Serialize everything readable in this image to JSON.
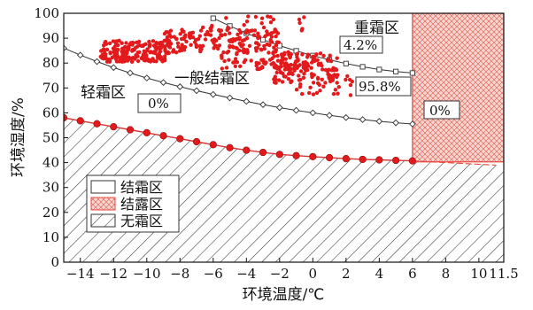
{
  "chart_data": {
    "type": "scatter",
    "xlabel": "环境温度/℃",
    "ylabel": "环境湿度/%",
    "xlim": [
      -15,
      11.5
    ],
    "ylim": [
      0,
      100
    ],
    "x_ticks": [
      -14,
      -12,
      -10,
      -8,
      -6,
      -4,
      -2,
      0,
      2,
      4,
      6,
      8,
      10,
      11.5
    ],
    "x_tick_labels": [
      "−14",
      "−12",
      "−10",
      "−8",
      "−6",
      "−4",
      "−2",
      "0",
      "2",
      "4",
      "6",
      "8",
      "10",
      "11.5"
    ],
    "y_ticks": [
      0,
      10,
      20,
      30,
      40,
      50,
      60,
      70,
      80,
      90,
      100
    ],
    "y_tick_labels": [
      "0",
      "10",
      "20",
      "30",
      "40",
      "50",
      "60",
      "70",
      "80",
      "90",
      "100"
    ],
    "frost_boundary": {
      "x": [
        -15,
        -14,
        -13,
        -12,
        -11,
        -10,
        -9,
        -8,
        -7,
        -6,
        -5,
        -4,
        -3,
        -2,
        -1,
        0,
        1,
        2,
        3,
        4,
        5,
        6
      ],
      "y": [
        58.0,
        56.8,
        55.6,
        54.4,
        53.2,
        52.0,
        50.8,
        49.6,
        48.4,
        47.2,
        46.0,
        45.0,
        44.1,
        43.3,
        42.8,
        42.4,
        42.0,
        41.6,
        41.3,
        41.1,
        40.9,
        40.7
      ]
    },
    "frost_boundary_extension": {
      "x": [
        6,
        11
      ],
      "y": [
        40.7,
        39.0
      ]
    },
    "light_frost_boundary": {
      "x": [
        -15,
        -14,
        -13,
        -12,
        -11,
        -10,
        -9,
        -8,
        -7,
        -6,
        -5,
        -4,
        -3,
        -2,
        -1,
        0,
        1,
        2,
        3,
        4,
        5,
        6
      ],
      "y": [
        86.0,
        83.2,
        80.6,
        78.2,
        76.0,
        74.0,
        72.2,
        70.5,
        68.9,
        67.4,
        66.0,
        64.6,
        63.3,
        62.1,
        61.0,
        60.0,
        59.0,
        58.1,
        57.3,
        56.6,
        56.0,
        55.5
      ]
    },
    "heavy_frost_boundary": {
      "x": [
        -6,
        -5,
        -4,
        -3,
        -2,
        -1,
        0,
        1,
        2,
        3,
        4,
        5,
        6
      ],
      "y": [
        98.0,
        94.9,
        92.0,
        89.4,
        87.0,
        84.9,
        83.0,
        81.3,
        79.8,
        78.5,
        77.4,
        76.6,
        76.0
      ]
    },
    "dew_region_x": [
      6,
      11.5
    ],
    "dew_region_y": [
      40.3,
      100
    ],
    "observations": {
      "clusters": [
        {
          "x": [
            -12.8,
            -8.5
          ],
          "y": [
            80.5,
            89.0
          ],
          "n": 190
        },
        {
          "x": [
            -9.0,
            -2.0
          ],
          "y": [
            84.0,
            93.5
          ],
          "n": 170
        },
        {
          "x": [
            -2.5,
            1.5
          ],
          "y": [
            72.0,
            84.0
          ],
          "n": 140
        },
        {
          "x": [
            -5.5,
            -1.0
          ],
          "y": [
            77.5,
            85.0
          ],
          "n": 60
        },
        {
          "x": [
            -1.0,
            2.5
          ],
          "y": [
            67.0,
            75.0
          ],
          "n": 30
        },
        {
          "x": [
            -7.0,
            -0.5
          ],
          "y": [
            93.0,
            99.0
          ],
          "n": 25
        }
      ]
    },
    "region_labels": {
      "heavy": "重霜区",
      "general": "一般结霜区",
      "light": "轻霜区"
    },
    "percent_labels": {
      "heavy": "4.2%",
      "general": "95.8%",
      "light": "0%",
      "dew": "0%"
    },
    "legend": {
      "items": [
        {
          "label": "结霜区",
          "style": "blank"
        },
        {
          "label": "结露区",
          "style": "red-crosshatch"
        },
        {
          "label": "无霜区",
          "style": "diagonal-hatch"
        }
      ],
      "position": "bottom-left"
    },
    "colors": {
      "observation": "#e31a1c",
      "frost_boundary_line": "#d93434",
      "dew_fill": "#f7d5cf",
      "dew_hatch": "#e0584e",
      "dew_border": "#e8473c",
      "hatch": "#333333",
      "light_curve": "#333333"
    }
  }
}
